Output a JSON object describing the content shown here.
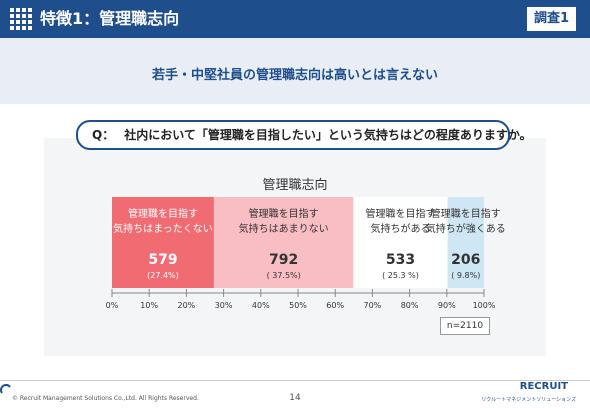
{
  "header": {
    "title": "特徴1：管理職志向",
    "badge": "調査1"
  },
  "subtitle": "若手・中堅社員の管理職志向は高いとは言えない",
  "question": {
    "label": "Q：",
    "text": "社内において「管理職を目指したい」という気持ちはどの程度ありますか。"
  },
  "chart_data": {
    "type": "bar",
    "orientation": "horizontal-stacked-100",
    "title": "管理職志向",
    "xlim": [
      0,
      100
    ],
    "x_unit": "%",
    "ticks": [
      "0%",
      "10%",
      "20%",
      "30%",
      "40%",
      "50%",
      "60%",
      "70%",
      "80%",
      "90%",
      "100%"
    ],
    "series": [
      {
        "label": "管理職を目指す\n気持ちはまったくない",
        "count": "579",
        "pct_label": "(27.4%)",
        "value": 27.4,
        "color": "#f06b72",
        "text_color": "#ffffff"
      },
      {
        "label": "管理職を目指す\n気持ちはあまりない",
        "count": "792",
        "pct_label": "( 37.5%)",
        "value": 37.5,
        "color": "#f9bec3",
        "text_color": "#333333"
      },
      {
        "label": "管理職を目指す\n気持ちがある",
        "count": "533",
        "pct_label": "( 25.3 %)",
        "value": 25.3,
        "color": "#ffffff",
        "text_color": "#333333"
      },
      {
        "label": "管理職を目指す\n気持ちが強くある",
        "count": "206",
        "pct_label": "( 9.8%)",
        "value": 9.8,
        "color": "#cfe6f5",
        "text_color": "#333333"
      }
    ],
    "n_label": "n=2110"
  },
  "footer": {
    "copyright": "© Recruit Management Solutions Co.,Ltd. All Rights Reserved.",
    "page": "14",
    "brand": "RECRUIT",
    "brand_sub": "リクルートマネジメントソリューションズ"
  }
}
